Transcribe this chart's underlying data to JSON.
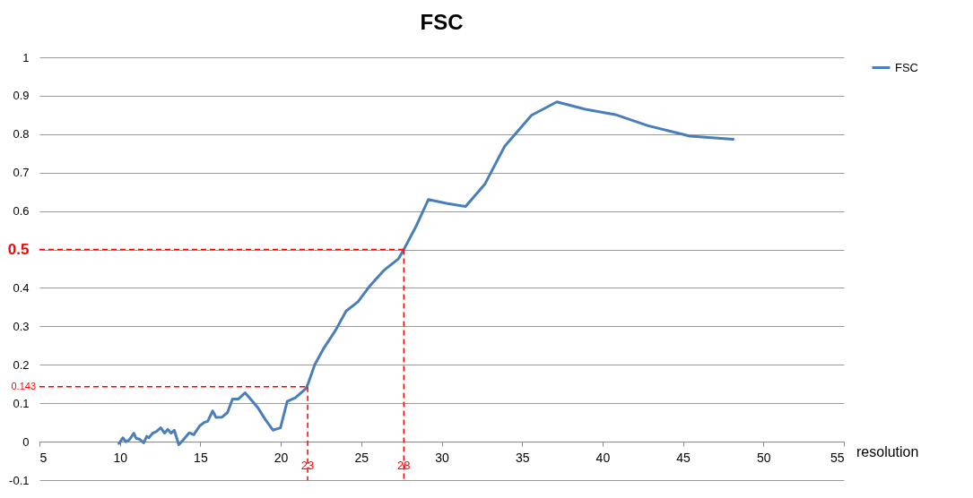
{
  "chart_data": {
    "type": "line",
    "title": "FSC",
    "xlabel": "resolution",
    "xlim": [
      5,
      55
    ],
    "xticks": [
      5,
      10,
      15,
      20,
      25,
      30,
      35,
      40,
      45,
      50,
      55
    ],
    "ylim": [
      -0.1,
      1
    ],
    "yticks": [
      -0.1,
      0,
      0.1,
      0.2,
      0.3,
      0.4,
      0.5,
      0.6,
      0.7,
      0.8,
      0.9,
      1
    ],
    "grid": "y",
    "legend": "right",
    "marker": "none",
    "line_style": "solid",
    "series": [
      {
        "name": "FSC",
        "color": "#4a7ebb",
        "x": [
          9.94,
          10.18,
          10.37,
          10.59,
          10.87,
          11.0,
          11.24,
          11.48,
          11.67,
          11.8,
          12.04,
          12.26,
          12.54,
          12.78,
          12.97,
          13.19,
          13.38,
          13.66,
          13.94,
          14.31,
          14.59,
          14.96,
          15.24,
          15.46,
          15.76,
          15.98,
          16.35,
          16.69,
          17.0,
          17.37,
          17.78,
          18.12,
          18.58,
          19.05,
          19.51,
          19.98,
          20.4,
          20.9,
          21.56,
          21.69,
          22.11,
          22.67,
          23.41,
          24.06,
          24.8,
          25.55,
          26.39,
          27.32,
          27.65,
          28.43,
          29.17,
          30.29,
          31.49,
          32.7,
          33.91,
          35.58,
          37.16,
          38.93,
          40.79,
          42.83,
          45.43,
          48.13
        ],
        "values": [
          -0.005,
          0.01,
          0.0,
          0.005,
          0.022,
          0.009,
          0.006,
          -0.003,
          0.014,
          0.01,
          0.022,
          0.026,
          0.036,
          0.022,
          0.032,
          0.022,
          0.03,
          -0.008,
          0.005,
          0.023,
          0.018,
          0.041,
          0.05,
          0.053,
          0.08,
          0.063,
          0.064,
          0.076,
          0.111,
          0.111,
          0.127,
          0.111,
          0.088,
          0.057,
          0.03,
          0.036,
          0.105,
          0.114,
          0.138,
          0.15,
          0.2,
          0.243,
          0.29,
          0.34,
          0.364,
          0.406,
          0.445,
          0.476,
          0.5,
          0.562,
          0.63,
          0.62,
          0.612,
          0.671,
          0.768,
          0.849,
          0.884,
          0.865,
          0.851,
          0.822,
          0.795,
          0.787
        ]
      }
    ],
    "ref_lines": [
      {
        "axis": "y",
        "value": 0.143,
        "label": "0.143",
        "color": "#ff0000",
        "line_style": "dashed"
      },
      {
        "axis": "x",
        "value": 21.67,
        "color": "#ff0000",
        "line_style": "dashed"
      },
      {
        "axis": "y",
        "value": 0.5,
        "label": "0.5",
        "color": "#ff0000",
        "line_style": "dashed"
      },
      {
        "axis": "x",
        "value": 27.65,
        "color": "#ff0000",
        "line_style": "dashed"
      }
    ],
    "annotations": [
      {
        "text": "23",
        "x": 21.67,
        "y": -0.063
      },
      {
        "text": "28",
        "x": 27.65,
        "y": -0.063
      }
    ]
  }
}
